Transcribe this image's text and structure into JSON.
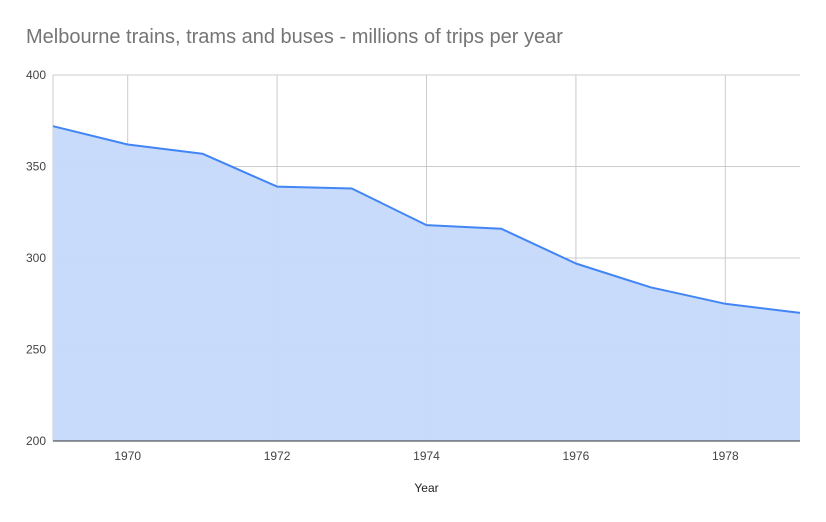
{
  "chart_data": {
    "type": "area",
    "title": "Melbourne trains, trams and buses - millions of trips per year",
    "xlabel": "Year",
    "ylabel": "",
    "x": [
      1969,
      1970,
      1971,
      1972,
      1973,
      1974,
      1975,
      1976,
      1977,
      1978,
      1979
    ],
    "series": [
      {
        "values": [
          372,
          362,
          357,
          339,
          338,
          318,
          316,
          297,
          284,
          275,
          270
        ]
      }
    ],
    "xlim": [
      1969,
      1979
    ],
    "ylim": [
      200,
      400
    ],
    "x_ticks": [
      "1970",
      "1972",
      "1974",
      "1976",
      "1978"
    ],
    "y_ticks": [
      "200",
      "250",
      "300",
      "350",
      "400"
    ],
    "grid": true,
    "legend": "none",
    "colors": {
      "line": "#4285f4",
      "fill": "#c6d9fa",
      "grid": "#cccccc",
      "baseline": "#333333"
    }
  }
}
